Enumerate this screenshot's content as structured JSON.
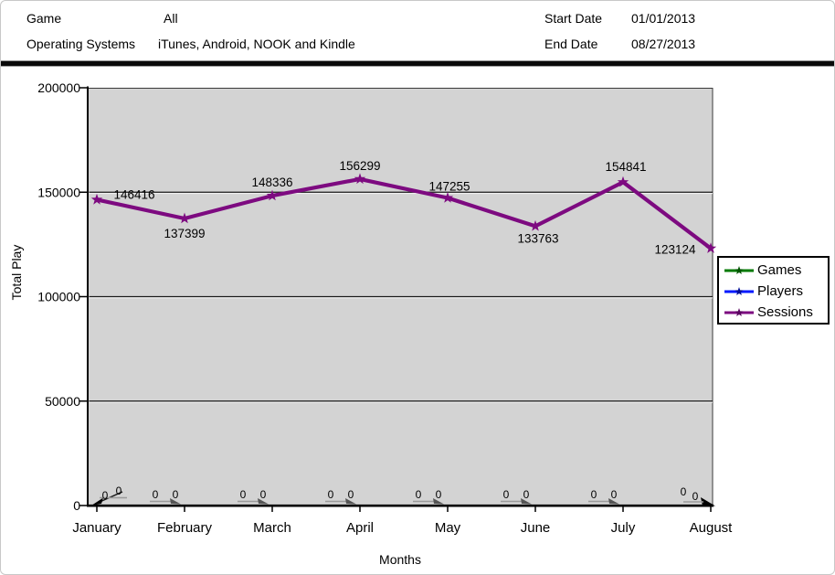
{
  "header": {
    "game_label": "Game",
    "game_value": "All",
    "os_label": "Operating Systems",
    "os_value": "iTunes, Android, NOOK and Kindle",
    "start_date_label": "Start Date",
    "start_date_value": "01/01/2013",
    "end_date_label": "End Date",
    "end_date_value": "08/27/2013"
  },
  "chart_data": {
    "type": "line",
    "title": "",
    "xlabel": "Months",
    "ylabel": "Total Play",
    "ylim": [
      0,
      200000
    ],
    "yticks": [
      0,
      50000,
      100000,
      150000,
      200000
    ],
    "grid": true,
    "legend_position": "right",
    "plot_bg": "#d3d3d3",
    "categories": [
      "January",
      "February",
      "March",
      "April",
      "May",
      "June",
      "July",
      "August"
    ],
    "series": [
      {
        "name": "Games",
        "color": "#007a00",
        "values": [
          0,
          0,
          0,
          0,
          0,
          0,
          0,
          0
        ]
      },
      {
        "name": "Players",
        "color": "#0019ff",
        "values": [
          0,
          0,
          0,
          0,
          0,
          0,
          0,
          0
        ]
      },
      {
        "name": "Sessions",
        "color": "#7d0a80",
        "values": [
          146416,
          137399,
          148336,
          156299,
          147255,
          133763,
          154841,
          123124
        ]
      }
    ]
  }
}
